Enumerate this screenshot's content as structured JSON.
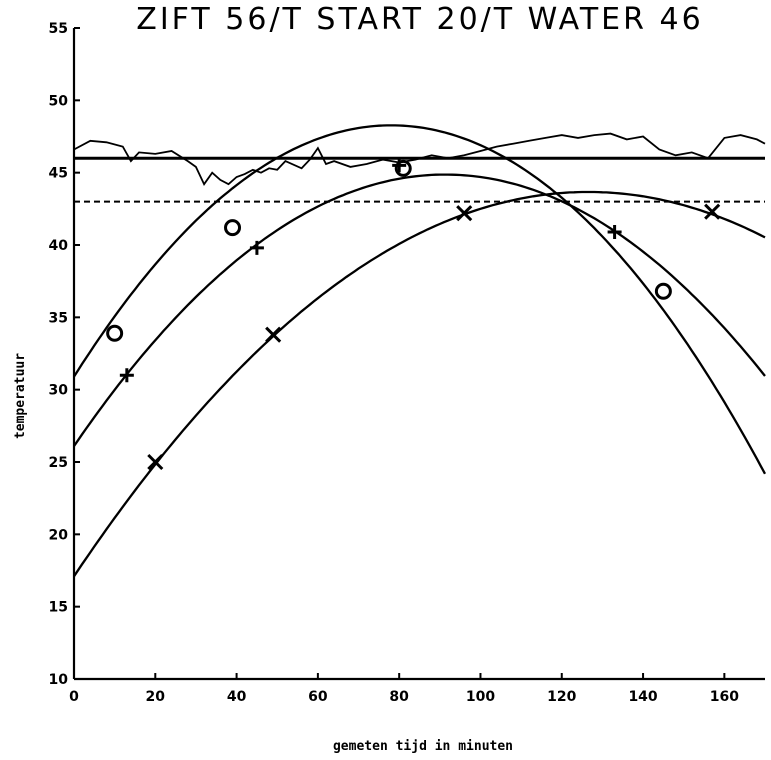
{
  "chart_data": {
    "type": "line",
    "title": "ZIFT 56/T START 20/T WATER 46",
    "xlabel": "gemeten tijd in minuten",
    "ylabel": "temperatuur",
    "xlim": [
      0,
      170
    ],
    "ylim": [
      10,
      55
    ],
    "x_ticks": [
      0,
      20,
      40,
      60,
      80,
      100,
      120,
      140,
      160
    ],
    "y_ticks": [
      10,
      15,
      20,
      25,
      30,
      35,
      40,
      45,
      50,
      55
    ],
    "grid": false,
    "reference_lines": [
      {
        "style": "solid",
        "y": 46
      },
      {
        "style": "dashed",
        "y": 43
      }
    ],
    "water_trace": {
      "x": [
        0,
        4,
        8,
        12,
        14,
        16,
        20,
        24,
        28,
        30,
        32,
        34,
        36,
        38,
        40,
        42,
        44,
        46,
        48,
        50,
        52,
        56,
        58,
        60,
        62,
        64,
        68,
        72,
        76,
        80,
        84,
        88,
        92,
        96,
        100,
        104,
        108,
        112,
        116,
        120,
        124,
        128,
        132,
        136,
        140,
        144,
        148,
        152,
        156,
        160,
        164,
        168,
        170
      ],
      "values": [
        46.6,
        47.2,
        47.1,
        46.8,
        45.8,
        46.4,
        46.3,
        46.5,
        45.8,
        45.4,
        44.2,
        45.0,
        44.5,
        44.2,
        44.7,
        44.9,
        45.2,
        45.0,
        45.3,
        45.2,
        45.8,
        45.3,
        45.9,
        46.7,
        45.6,
        45.8,
        45.4,
        45.6,
        45.9,
        45.7,
        45.9,
        46.2,
        46.0,
        46.2,
        46.5,
        46.8,
        47.0,
        47.2,
        47.4,
        47.6,
        47.4,
        47.6,
        47.7,
        47.3,
        47.5,
        46.6,
        46.2,
        46.4,
        46.0,
        47.4,
        47.6,
        47.3,
        47.0
      ]
    },
    "series": [
      {
        "marker": "o",
        "curve": [
          30.9,
          0.445,
          -0.00285
        ],
        "x": [
          10,
          39,
          81,
          145
        ],
        "values": [
          33.9,
          41.2,
          45.3,
          36.8
        ]
      },
      {
        "marker": "+",
        "curve": [
          26.1,
          0.411,
          -0.00225
        ],
        "x": [
          13,
          45,
          80,
          133
        ],
        "values": [
          31.0,
          39.8,
          45.5,
          40.9
        ]
      },
      {
        "marker": "x",
        "curve": [
          17.1,
          0.42,
          -0.00166
        ],
        "x": [
          20,
          49,
          96,
          157
        ],
        "values": [
          25.0,
          33.8,
          42.2,
          42.3
        ]
      }
    ]
  }
}
